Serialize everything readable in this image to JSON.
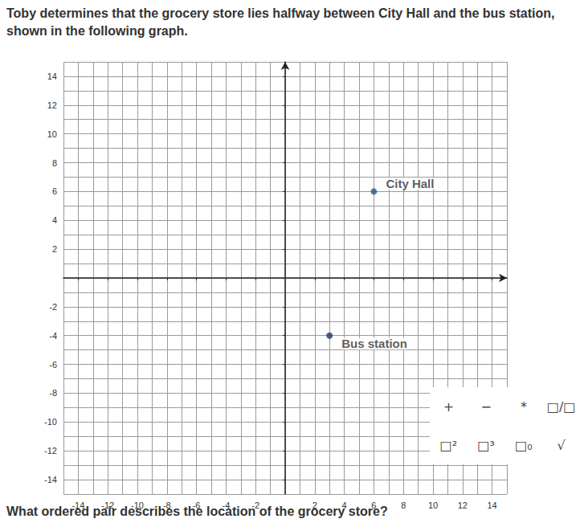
{
  "header": "Toby determines that the grocery store lies halfway between City Hall and the bus station, shown in the following graph.",
  "question": "What ordered pair describes the location of the grocery store?",
  "toolbar": [
    "+",
    "−",
    "*",
    "□/□",
    "□²",
    "□³",
    "□₀",
    "√"
  ],
  "chart_data": {
    "type": "scatter",
    "x": [
      6,
      3
    ],
    "values": [
      6,
      -4
    ],
    "point_labels": [
      "City Hall",
      "Bus station"
    ],
    "colors": [
      "#2f5597",
      "#1f3a6b"
    ],
    "marker": "circle",
    "xlim": [
      -15,
      15
    ],
    "ylim": [
      -15,
      15
    ],
    "xticks": [
      -14,
      -12,
      -10,
      -8,
      -6,
      -4,
      -2,
      2,
      4,
      6,
      8,
      10,
      12,
      14
    ],
    "yticks": [
      -14,
      -12,
      -10,
      -8,
      -6,
      -4,
      -2,
      2,
      4,
      6,
      8,
      10,
      12,
      14
    ],
    "grid": true
  }
}
